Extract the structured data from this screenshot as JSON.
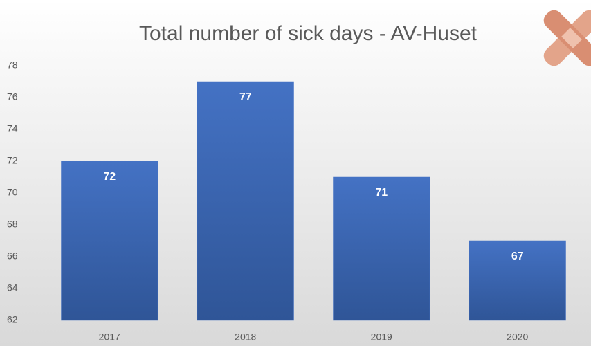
{
  "chart_data": {
    "type": "bar",
    "title": "Total number of sick days - AV-Huset",
    "categories": [
      "2017",
      "2018",
      "2019",
      "2020"
    ],
    "values": [
      72,
      77,
      71,
      67
    ],
    "color": "#4472c4",
    "ylim": [
      62,
      78
    ],
    "yticks": [
      62,
      64,
      66,
      68,
      70,
      72,
      74,
      76,
      78
    ],
    "grid": false
  }
}
